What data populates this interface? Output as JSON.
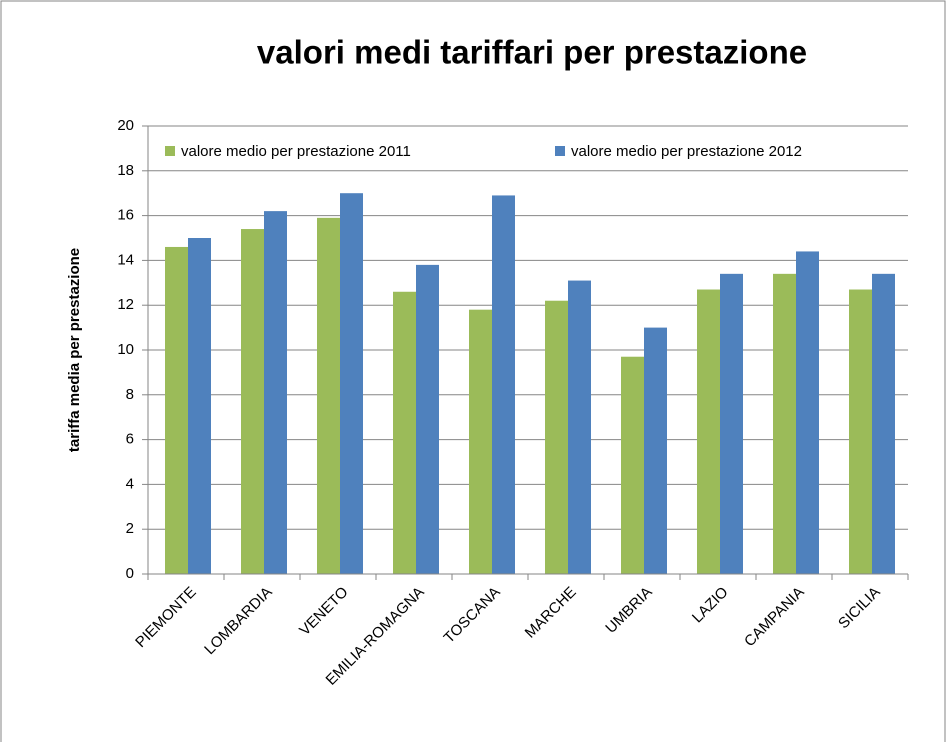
{
  "chart_data": {
    "type": "bar",
    "title": "valori medi tariffari per prestazione",
    "y_label": "tariffa media per prestazione",
    "categories": [
      "PIEMONTE",
      "LOMBARDIA",
      "VENETO",
      "EMILIA-ROMAGNA",
      "TOSCANA",
      "MARCHE",
      "UMBRIA",
      "LAZIO",
      "CAMPANIA",
      "SICILIA"
    ],
    "series": [
      {
        "name": "valore medio per prestazione 2011",
        "color": "#9bbb59",
        "values": [
          14.6,
          15.4,
          15.9,
          12.6,
          11.8,
          12.2,
          9.7,
          12.7,
          13.4,
          12.7
        ]
      },
      {
        "name": "valore medio per prestazione 2012",
        "color": "#4f81bd",
        "values": [
          15.0,
          16.2,
          17.0,
          13.8,
          16.9,
          13.1,
          11.0,
          13.4,
          14.4,
          13.4
        ]
      }
    ],
    "ylim": [
      0,
      20
    ],
    "yticks": [
      0,
      2,
      4,
      6,
      8,
      10,
      12,
      14,
      16,
      18,
      20
    ],
    "grid": true,
    "legend": "top"
  }
}
